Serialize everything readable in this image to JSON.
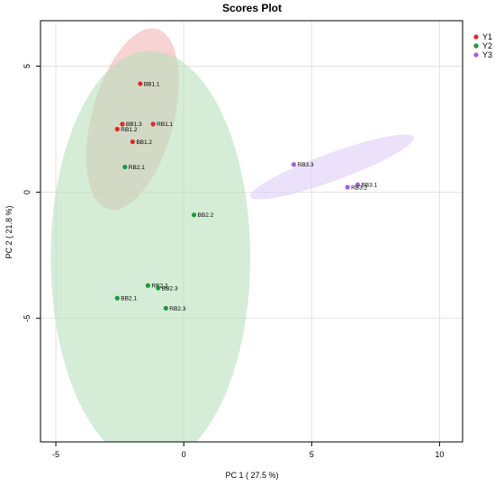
{
  "chart_data": {
    "type": "scatter",
    "title": "Scores Plot",
    "xlabel": "PC 1 ( 27.5 %)",
    "ylabel": "PC 2 ( 21.8 %)",
    "xlim": [
      -5.6,
      10.9
    ],
    "ylim": [
      -9.9,
      6.8
    ],
    "xticks": [
      -5,
      0,
      5,
      10
    ],
    "yticks": [
      -5,
      0,
      5
    ],
    "grid": true,
    "legend_position": "top-right",
    "series": [
      {
        "name": "Y1",
        "color": "#e3262c",
        "fill": "#f4b6b7",
        "points": [
          {
            "label": "BB1.1",
            "x": -1.7,
            "y": 4.3
          },
          {
            "label": "BB1.3",
            "x": -2.4,
            "y": 2.7
          },
          {
            "label": "RB1.1",
            "x": -1.2,
            "y": 2.7
          },
          {
            "label": "RB1.2",
            "x": -2.6,
            "y": 2.5
          },
          {
            "label": "BB1.2",
            "x": -2.0,
            "y": 2.0
          }
        ],
        "ellipse": {
          "cx": -2.0,
          "cy": 2.9,
          "rx": 1.6,
          "ry": 3.7,
          "rotation": 15
        }
      },
      {
        "name": "Y2",
        "color": "#1e9a3c",
        "fill": "#b9dfbd",
        "points": [
          {
            "label": "RB2.1",
            "x": -2.3,
            "y": 1.0
          },
          {
            "label": "BB2.2",
            "x": 0.4,
            "y": -0.9
          },
          {
            "label": "RB2.2",
            "x": -1.4,
            "y": -3.7
          },
          {
            "label": "BB2.3",
            "x": -1.0,
            "y": -3.8
          },
          {
            "label": "BB2.1",
            "x": -2.6,
            "y": -4.2
          },
          {
            "label": "RB2.3",
            "x": -0.7,
            "y": -4.6
          }
        ],
        "ellipse": {
          "cx": -1.3,
          "cy": -2.6,
          "rx": 3.9,
          "ry": 8.2,
          "rotation": 0
        }
      },
      {
        "name": "Y3",
        "color": "#a25fe0",
        "fill": "#e0cdf6",
        "points": [
          {
            "label": "RB3.3",
            "x": 4.3,
            "y": 1.1
          },
          {
            "label": "BB3.1",
            "x": 6.8,
            "y": 0.3
          },
          {
            "label": "RB3.2",
            "x": 6.4,
            "y": 0.2
          }
        ],
        "ellipse": {
          "cx": 5.8,
          "cy": 1.0,
          "rx": 3.4,
          "ry": 0.55,
          "rotation": -20
        }
      }
    ]
  }
}
